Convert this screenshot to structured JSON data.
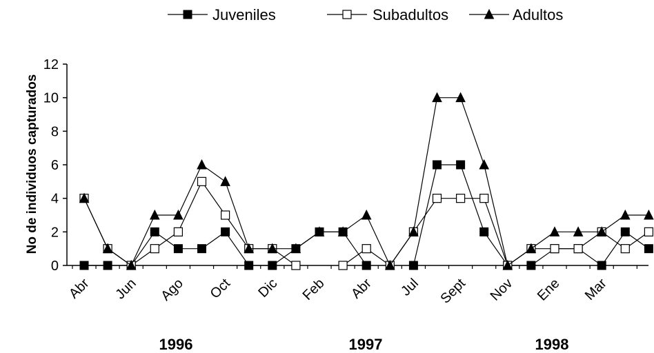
{
  "chart_data": {
    "type": "line",
    "ylabel": "No de individuos capturados",
    "xlabel": "",
    "ylim": [
      0,
      12
    ],
    "yticks": [
      0,
      2,
      4,
      6,
      8,
      10,
      12
    ],
    "tick_labels": [
      "Abr",
      "Jun",
      "Ago",
      "Oct",
      "Dic",
      "Feb",
      "Abr",
      "Jul",
      "Sept",
      "Nov",
      "Ene",
      "Mar"
    ],
    "years": [
      "1996",
      "1997",
      "1998"
    ],
    "series": [
      {
        "name": "Juveniles",
        "marker": "filled-square",
        "values": [
          0,
          0,
          0,
          2,
          1,
          1,
          2,
          0,
          0,
          1,
          2,
          2,
          0,
          null,
          0,
          6,
          6,
          2,
          0,
          0,
          1,
          1,
          0,
          2,
          1
        ]
      },
      {
        "name": "Subadultos",
        "marker": "open-square",
        "values": [
          4,
          1,
          0,
          1,
          2,
          5,
          3,
          1,
          1,
          0,
          null,
          0,
          1,
          0,
          2,
          4,
          4,
          4,
          0,
          1,
          1,
          1,
          2,
          1,
          2
        ]
      },
      {
        "name": "Adultos",
        "marker": "filled-triangle",
        "values": [
          4,
          1,
          0,
          3,
          3,
          6,
          5,
          1,
          1,
          1,
          2,
          2,
          3,
          0,
          2,
          10,
          10,
          6,
          0,
          1,
          2,
          2,
          2,
          3,
          3
        ]
      }
    ],
    "legend_position": "top",
    "grid": false
  }
}
